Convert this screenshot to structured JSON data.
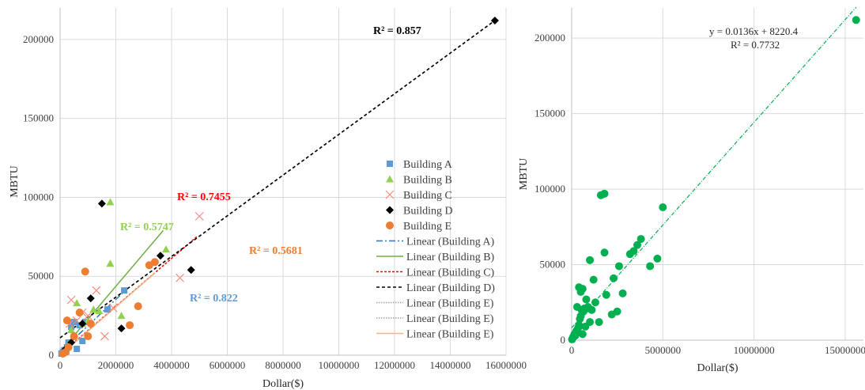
{
  "chart_data": [
    {
      "type": "scatter",
      "title": "",
      "xlabel": "Dollar($)",
      "ylabel": "MBTU",
      "xlim": [
        0,
        16000000
      ],
      "ylim": [
        0,
        220000
      ],
      "x_ticks": [
        "0",
        "2000000",
        "4000000",
        "6000000",
        "8000000",
        "10000000",
        "12000000",
        "14000000",
        "16000000"
      ],
      "y_ticks": [
        "0",
        "50000",
        "100000",
        "150000",
        "200000"
      ],
      "grid": true,
      "legend_position": "right",
      "series": [
        {
          "name": "Building A",
          "marker": "square",
          "color": "#5b9bd5",
          "points": [
            [
              50000,
              1000
            ],
            [
              100000,
              2000
            ],
            [
              150000,
              3000
            ],
            [
              250000,
              5000
            ],
            [
              300000,
              8000
            ],
            [
              400000,
              18000
            ],
            [
              500000,
              21000
            ],
            [
              600000,
              4000
            ],
            [
              700000,
              19000
            ],
            [
              800000,
              9000
            ],
            [
              900000,
              21000
            ],
            [
              1700000,
              29000
            ],
            [
              2300000,
              41000
            ]
          ],
          "r2": "R² = 0.822",
          "trend": {
            "x": [
              0,
              2400000
            ],
            "y": [
              2000,
              42000
            ],
            "color": "#2e75b6",
            "dash": "8,3,2,3"
          }
        },
        {
          "name": "Building B",
          "marker": "triangle",
          "color": "#92d050",
          "points": [
            [
              100000,
              2000
            ],
            [
              200000,
              4000
            ],
            [
              300000,
              7000
            ],
            [
              400000,
              16000
            ],
            [
              600000,
              33000
            ],
            [
              800000,
              20000
            ],
            [
              1000000,
              22000
            ],
            [
              1200000,
              29000
            ],
            [
              1400000,
              28000
            ],
            [
              1800000,
              97000
            ],
            [
              1800000,
              58000
            ],
            [
              2200000,
              25000
            ],
            [
              3800000,
              67000
            ]
          ],
          "r2": "R² = 0.5747",
          "trend": {
            "x": [
              0,
              3700000
            ],
            "y": [
              2000,
              79000
            ],
            "color": "#70ad47",
            "dash": ""
          }
        },
        {
          "name": "Building C",
          "marker": "x",
          "color": "#f4877a",
          "points": [
            [
              200000,
              3000
            ],
            [
              350000,
              20000
            ],
            [
              400000,
              35000
            ],
            [
              600000,
              22000
            ],
            [
              800000,
              27000
            ],
            [
              1000000,
              25000
            ],
            [
              1300000,
              41000
            ],
            [
              1600000,
              12000
            ],
            [
              1900000,
              30000
            ],
            [
              4300000,
              49000
            ],
            [
              5000000,
              88000
            ]
          ],
          "r2": "R² = 0.7455",
          "trend": {
            "x": [
              0,
              4900000
            ],
            "y": [
              500,
              75000
            ],
            "color": "#ff0000",
            "dash": "3,2"
          }
        },
        {
          "name": "Building D",
          "marker": "diamond",
          "color": "#000000",
          "points": [
            [
              200000,
              4000
            ],
            [
              400000,
              8000
            ],
            [
              800000,
              20000
            ],
            [
              1100000,
              36000
            ],
            [
              1500000,
              96000
            ],
            [
              2200000,
              17000
            ],
            [
              3600000,
              63000
            ],
            [
              4700000,
              54000
            ],
            [
              15600000,
              212000
            ]
          ],
          "r2": "R² = 0.857",
          "trend": {
            "x": [
              0,
              15600000
            ],
            "y": [
              11000,
              212000
            ],
            "color": "#000000",
            "dash": "4,3"
          }
        },
        {
          "name": "Building E",
          "marker": "circle",
          "color": "#ed7d31",
          "points": [
            [
              100000,
              1000
            ],
            [
              200000,
              2000
            ],
            [
              250000,
              22000
            ],
            [
              300000,
              5000
            ],
            [
              500000,
              12000
            ],
            [
              700000,
              27000
            ],
            [
              900000,
              53000
            ],
            [
              1000000,
              12000
            ],
            [
              1100000,
              20000
            ],
            [
              2500000,
              19000
            ],
            [
              2800000,
              31000
            ],
            [
              3200000,
              57000
            ],
            [
              3400000,
              59000
            ]
          ],
          "r2": "R² = 0.5681",
          "trend": {
            "x": [
              0,
              3400000
            ],
            "y": [
              0,
              52000
            ],
            "color": "#f4b183",
            "dash": ""
          }
        }
      ],
      "legend": {
        "entries": [
          "Building A",
          "Building B",
          "Building C",
          "Building D",
          "Building E",
          "Linear (Building A)",
          "Linear (Building B)",
          "Linear (Building C)",
          "Linear (Building D)",
          "Linear (Building E)",
          "Linear (Building E)",
          "Linear (Building E)"
        ]
      }
    },
    {
      "type": "scatter",
      "title": "",
      "xlabel": "Dollar($)",
      "ylabel": "MBTU",
      "xlim": [
        0,
        16000000
      ],
      "ylim": [
        0,
        220000
      ],
      "x_ticks": [
        "0",
        "5000000",
        "10000000",
        "15000000"
      ],
      "y_ticks": [
        "0",
        "50000",
        "100000",
        "150000",
        "200000"
      ],
      "grid": true,
      "equation": "y = 0.0136x + 8220.4",
      "r2": "R² = 0.7732",
      "series": [
        {
          "color": "#00b050",
          "points": [
            [
              20000,
              500
            ],
            [
              60000,
              1500
            ],
            [
              100000,
              2500
            ],
            [
              150000,
              4000
            ],
            [
              200000,
              3000
            ],
            [
              250000,
              6000
            ],
            [
              300000,
              5000
            ],
            [
              350000,
              8000
            ],
            [
              400000,
              10000
            ],
            [
              450000,
              14000
            ],
            [
              500000,
              16000
            ],
            [
              550000,
              20000
            ],
            [
              600000,
              4000
            ],
            [
              650000,
              19000
            ],
            [
              700000,
              21000
            ],
            [
              750000,
              9000
            ],
            [
              800000,
              27000
            ],
            [
              850000,
              21000
            ],
            [
              900000,
              22000
            ],
            [
              300000,
              22000
            ],
            [
              400000,
              35000
            ],
            [
              500000,
              32000
            ],
            [
              600000,
              34000
            ],
            [
              1000000,
              53000
            ],
            [
              1000000,
              12000
            ],
            [
              1100000,
              20000
            ],
            [
              1200000,
              40000
            ],
            [
              1300000,
              25000
            ],
            [
              1500000,
              12000
            ],
            [
              1600000,
              96000
            ],
            [
              1800000,
              97000
            ],
            [
              1800000,
              58000
            ],
            [
              1900000,
              30000
            ],
            [
              2200000,
              17000
            ],
            [
              2300000,
              41000
            ],
            [
              2500000,
              19000
            ],
            [
              2600000,
              49000
            ],
            [
              2800000,
              31000
            ],
            [
              3200000,
              57000
            ],
            [
              3400000,
              59000
            ],
            [
              3600000,
              63000
            ],
            [
              3800000,
              67000
            ],
            [
              4300000,
              49000
            ],
            [
              4700000,
              54000
            ],
            [
              5000000,
              88000
            ],
            [
              15600000,
              212000
            ]
          ],
          "trend": {
            "x": [
              0,
              15600000
            ],
            "y": [
              8220.4,
              220380.4
            ],
            "color": "#00b050"
          }
        }
      ]
    }
  ]
}
